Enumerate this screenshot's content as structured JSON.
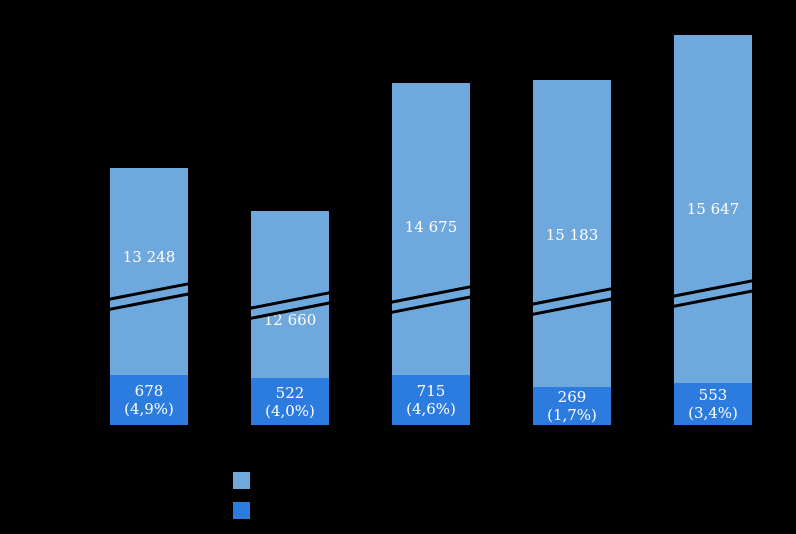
{
  "canvas": {
    "background": "#000000"
  },
  "colors": {
    "series_light": "#6FA8DC",
    "series_dark": "#2B7CDE",
    "label_text": "#ffffff"
  },
  "bars": [
    {
      "top_label": "13 248",
      "bottom_value": "678",
      "bottom_pct": "(4,9%)"
    },
    {
      "top_label": "12 660",
      "bottom_value": "522",
      "bottom_pct": "(4,0%)"
    },
    {
      "top_label": "14 675",
      "bottom_value": "715",
      "bottom_pct": "(4,6%)"
    },
    {
      "top_label": "15 183",
      "bottom_value": "269",
      "bottom_pct": "(1,7%)"
    },
    {
      "top_label": "15 647",
      "bottom_value": "553",
      "bottom_pct": "(3,4%)"
    }
  ],
  "chart_data": {
    "type": "bar",
    "subtype": "stacked-with-axis-break",
    "categories": [
      "",
      "",
      "",
      "",
      ""
    ],
    "series": [
      {
        "name": "upper-segment",
        "color": "#6FA8DC",
        "values": [
          13248,
          12660,
          14675,
          15183,
          15647
        ]
      },
      {
        "name": "lower-segment",
        "color": "#2B7CDE",
        "values": [
          678,
          522,
          715,
          269,
          553
        ]
      }
    ],
    "data_labels": {
      "upper": [
        "13 248",
        "12 660",
        "14 675",
        "15 183",
        "15 647"
      ],
      "lower": [
        "678 (4,9%)",
        "522 (4,0%)",
        "715 (4,6%)",
        "269 (1,7%)",
        "553 (3,4%)"
      ]
    },
    "annotations": [
      "axis break marks (double diagonal lines) across each bar"
    ],
    "legend": {
      "position": "bottom-left",
      "entries": [
        {
          "color": "#6FA8DC"
        },
        {
          "color": "#2B7CDE"
        }
      ]
    },
    "grid": false
  }
}
